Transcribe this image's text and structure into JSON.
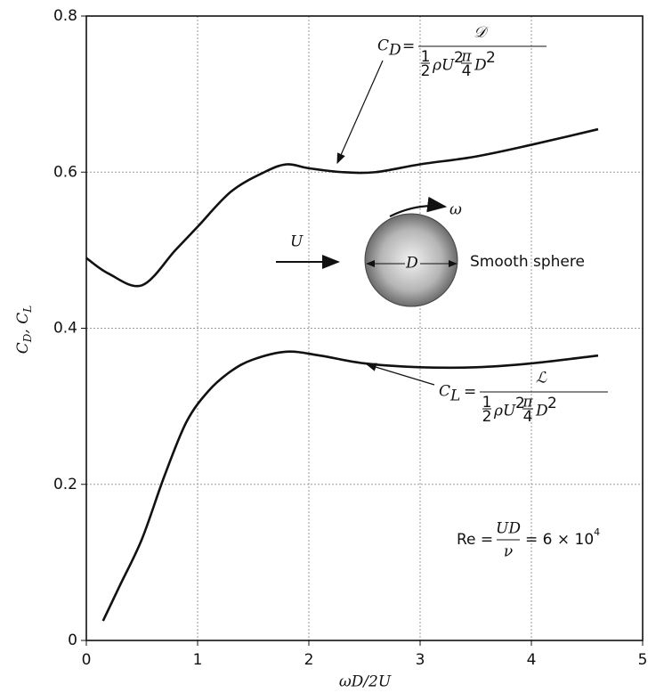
{
  "chart_data": {
    "type": "line",
    "x_label": "ωD/2U",
    "y_label": {
      "symbol_1": "C",
      "subscript_1": "D",
      "separator": ", C",
      "subscript_2": "L"
    },
    "xlim": [
      0,
      5
    ],
    "ylim": [
      0,
      0.8
    ],
    "xticks": [
      0,
      1,
      2,
      3,
      4,
      5
    ],
    "yticks": [
      0,
      0.2,
      0.4,
      0.6,
      0.8
    ],
    "grid": true,
    "series": [
      {
        "color": "#111111",
        "x": [
          0,
          0.2,
          0.5,
          0.8,
          1.0,
          1.3,
          1.6,
          1.8,
          2.0,
          2.3,
          2.6,
          3.0,
          3.5,
          4.0,
          4.6
        ],
        "values": [
          0.49,
          0.47,
          0.455,
          0.5,
          0.53,
          0.575,
          0.6,
          0.61,
          0.605,
          0.6,
          0.6,
          0.61,
          0.62,
          0.635,
          0.655
        ]
      },
      {
        "color": "#111111",
        "x": [
          0.15,
          0.3,
          0.5,
          0.7,
          0.9,
          1.1,
          1.3,
          1.5,
          1.8,
          2.1,
          2.5,
          3.0,
          3.5,
          4.0,
          4.6
        ],
        "values": [
          0.025,
          0.07,
          0.13,
          0.21,
          0.28,
          0.32,
          0.345,
          0.36,
          0.37,
          0.365,
          0.355,
          0.35,
          0.35,
          0.355,
          0.365
        ]
      }
    ],
    "annotations": {
      "drag_formula": {
        "symbol": "C",
        "subscript": "D",
        "equals": "=",
        "numerator": "𝒟",
        "half_num": "1",
        "half_den": "2",
        "density_velocity": "ρU",
        "velocity_power": "2",
        "pi": "π",
        "quarter_den": "4",
        "diameter": "D",
        "diameter_power": "2"
      },
      "lift_formula": {
        "symbol": "C",
        "subscript": "L",
        "equals": "=",
        "numerator": "ℒ",
        "half_num": "1",
        "half_den": "2",
        "density_velocity": "ρU",
        "velocity_power": "2",
        "pi": "π",
        "quarter_den": "4",
        "diameter": "D",
        "diameter_power": "2"
      },
      "sphere": {
        "velocity": "U",
        "rotation": "ω",
        "diameter": "D",
        "label": "Smooth sphere"
      },
      "reynolds": {
        "lhs": "Re =",
        "numerator": "UD",
        "denominator": "ν",
        "rhs": "= 6 × 10",
        "exponent": "4"
      }
    }
  }
}
